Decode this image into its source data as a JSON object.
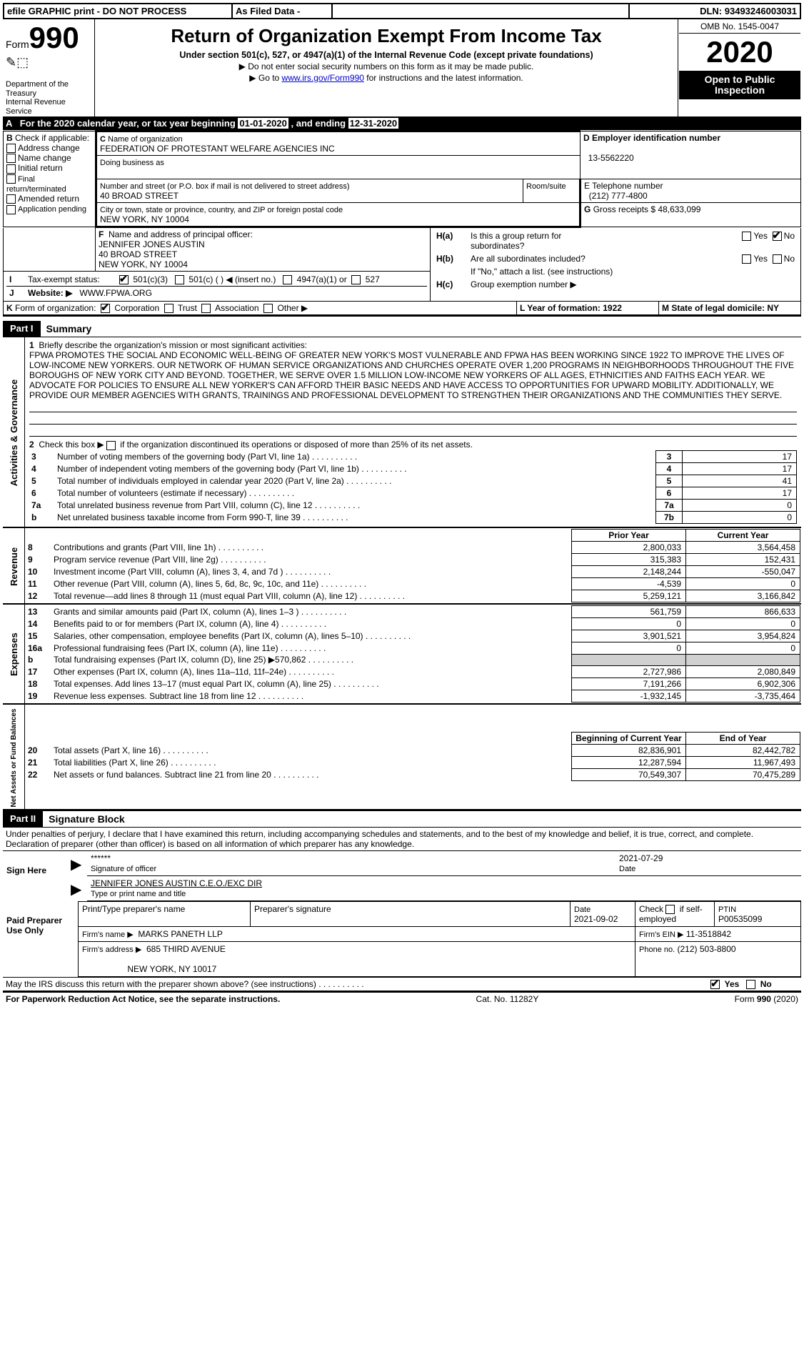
{
  "top": {
    "efile": "efile GRAPHIC print - DO NOT PROCESS",
    "asfiled": "As Filed Data -",
    "dln_label": "DLN:",
    "dln": "93493246003031"
  },
  "header": {
    "form_word": "Form",
    "form_num": "990",
    "dept1": "Department of the Treasury",
    "dept2": "Internal Revenue Service",
    "title": "Return of Organization Exempt From Income Tax",
    "sub": "Under section 501(c), 527, or 4947(a)(1) of the Internal Revenue Code (except private foundations)",
    "arrow1": "▶ Do not enter social security numbers on this form as it may be made public.",
    "arrow2_pre": "▶ Go to ",
    "arrow2_link": "www.irs.gov/Form990",
    "arrow2_post": " for instructions and the latest information.",
    "omb": "OMB No. 1545-0047",
    "year": "2020",
    "open1": "Open to Public",
    "open2": "Inspection"
  },
  "rowA": {
    "label": "A",
    "text_pre": "For the 2020 calendar year, or tax year beginning ",
    "begin": "01-01-2020",
    "mid": "   , and ending ",
    "end": "12-31-2020"
  },
  "B": {
    "label": "B",
    "check": "Check if applicable:",
    "items": [
      "Address change",
      "Name change",
      "Initial return",
      "Final return/terminated",
      "Amended return",
      "Application pending"
    ]
  },
  "C": {
    "label": "C",
    "name_lbl": "Name of organization",
    "name": "FEDERATION OF PROTESTANT WELFARE AGENCIES INC",
    "dba_lbl": "Doing business as",
    "street_lbl": "Number and street (or P.O. box if mail is not delivered to street address)",
    "room_lbl": "Room/suite",
    "street": "40 BROAD STREET",
    "city_lbl": "City or town, state or province, country, and ZIP or foreign postal code",
    "city": "NEW YORK, NY  10004"
  },
  "D": {
    "label": "D Employer identification number",
    "val": "13-5562220"
  },
  "E": {
    "label": "E Telephone number",
    "val": "(212) 777-4800"
  },
  "G": {
    "label": "G",
    "text": "Gross receipts $",
    "val": "48,633,099"
  },
  "F": {
    "label": "F",
    "text": "Name and address of principal officer:",
    "line1": "JENNIFER JONES AUSTIN",
    "line2": "40 BROAD STREET",
    "line3": "NEW YORK, NY  10004"
  },
  "H": {
    "a_lbl": "H(a)",
    "a_text": "Is this a group return for",
    "a_text2": "subordinates?",
    "b_lbl": "H(b)",
    "b_text": "Are all subordinates included?",
    "b_note": "If \"No,\" attach a list. (see instructions)",
    "c_lbl": "H(c)",
    "c_text": "Group exemption number ▶",
    "yes": "Yes",
    "no": "No"
  },
  "I": {
    "label": "I",
    "text": "Tax-exempt status:",
    "o1": "501(c)(3)",
    "o2": "501(c) (   ) ◀ (insert no.)",
    "o3": "4947(a)(1) or",
    "o4": "527"
  },
  "J": {
    "label": "J",
    "text": "Website: ▶",
    "val": "WWW.FPWA.ORG"
  },
  "K": {
    "label": "K",
    "text": "Form of organization:",
    "o1": "Corporation",
    "o2": "Trust",
    "o3": "Association",
    "o4": "Other ▶"
  },
  "L": {
    "text": "L Year of formation: 1922"
  },
  "M": {
    "text": "M State of legal domicile: NY"
  },
  "part1": {
    "label": "Part I",
    "title": "Summary"
  },
  "mission": {
    "num": "1",
    "lead": "Briefly describe the organization's mission or most significant activities:",
    "text": "FPWA PROMOTES THE SOCIAL AND ECONOMIC WELL-BEING OF GREATER NEW YORK'S MOST VULNERABLE AND FPWA HAS BEEN WORKING SINCE 1922 TO IMPROVE THE LIVES OF LOW-INCOME NEW YORKERS. OUR NETWORK OF HUMAN SERVICE ORGANIZATIONS AND CHURCHES OPERATE OVER 1,200 PROGRAMS IN NEIGHBORHOODS THROUGHOUT THE FIVE BOROUGHS OF NEW YORK CITY AND BEYOND. TOGETHER, WE SERVE OVER 1.5 MILLION LOW-INCOME NEW YORKERS OF ALL AGES, ETHNICITIES AND FAITHS EACH YEAR. WE ADVOCATE FOR POLICIES TO ENSURE ALL NEW YORKER'S CAN AFFORD THEIR BASIC NEEDS AND HAVE ACCESS TO OPPORTUNITIES FOR UPWARD MOBILITY. ADDITIONALLY, WE PROVIDE OUR MEMBER AGENCIES WITH GRANTS, TRAININGS AND PROFESSIONAL DEVELOPMENT TO STRENGTHEN THEIR ORGANIZATIONS AND THE COMMUNITIES THEY SERVE."
  },
  "line2": {
    "num": "2",
    "text": "Check this box ▶ ",
    "post": " if the organization discontinued its operations or disposed of more than 25% of its net assets."
  },
  "gov_lines": [
    {
      "n": "3",
      "t": "Number of voting members of the governing body (Part VI, line 1a)",
      "box": "3",
      "v": "17"
    },
    {
      "n": "4",
      "t": "Number of independent voting members of the governing body (Part VI, line 1b)",
      "box": "4",
      "v": "17"
    },
    {
      "n": "5",
      "t": "Total number of individuals employed in calendar year 2020 (Part V, line 2a)",
      "box": "5",
      "v": "41"
    },
    {
      "n": "6",
      "t": "Total number of volunteers (estimate if necessary)",
      "box": "6",
      "v": "17"
    },
    {
      "n": "7a",
      "t": "Total unrelated business revenue from Part VIII, column (C), line 12",
      "box": "7a",
      "v": "0"
    },
    {
      "n": "b",
      "t": "Net unrelated business taxable income from Form 990-T, line 39",
      "box": "7b",
      "v": "0"
    }
  ],
  "col_hdrs": {
    "prior": "Prior Year",
    "current": "Current Year"
  },
  "revenue": [
    {
      "n": "8",
      "t": "Contributions and grants (Part VIII, line 1h)",
      "p": "2,800,033",
      "c": "3,564,458"
    },
    {
      "n": "9",
      "t": "Program service revenue (Part VIII, line 2g)",
      "p": "315,383",
      "c": "152,431"
    },
    {
      "n": "10",
      "t": "Investment income (Part VIII, column (A), lines 3, 4, and 7d )",
      "p": "2,148,244",
      "c": "-550,047"
    },
    {
      "n": "11",
      "t": "Other revenue (Part VIII, column (A), lines 5, 6d, 8c, 9c, 10c, and 11e)",
      "p": "-4,539",
      "c": "0"
    },
    {
      "n": "12",
      "t": "Total revenue—add lines 8 through 11 (must equal Part VIII, column (A), line 12)",
      "p": "5,259,121",
      "c": "3,166,842"
    }
  ],
  "expenses": [
    {
      "n": "13",
      "t": "Grants and similar amounts paid (Part IX, column (A), lines 1–3 )",
      "p": "561,759",
      "c": "866,633"
    },
    {
      "n": "14",
      "t": "Benefits paid to or for members (Part IX, column (A), line 4)",
      "p": "0",
      "c": "0"
    },
    {
      "n": "15",
      "t": "Salaries, other compensation, employee benefits (Part IX, column (A), lines 5–10)",
      "p": "3,901,521",
      "c": "3,954,824"
    },
    {
      "n": "16a",
      "t": "Professional fundraising fees (Part IX, column (A), line 11e)",
      "p": "0",
      "c": "0"
    },
    {
      "n": "b",
      "t": "Total fundraising expenses (Part IX, column (D), line 25) ▶570,862",
      "p": "",
      "c": ""
    },
    {
      "n": "17",
      "t": "Other expenses (Part IX, column (A), lines 11a–11d, 11f–24e)",
      "p": "2,727,986",
      "c": "2,080,849"
    },
    {
      "n": "18",
      "t": "Total expenses. Add lines 13–17 (must equal Part IX, column (A), line 25)",
      "p": "7,191,266",
      "c": "6,902,306"
    },
    {
      "n": "19",
      "t": "Revenue less expenses. Subtract line 18 from line 12",
      "p": "-1,932,145",
      "c": "-3,735,464"
    }
  ],
  "na_hdrs": {
    "begin": "Beginning of Current Year",
    "end": "End of Year"
  },
  "net_assets": [
    {
      "n": "20",
      "t": "Total assets (Part X, line 16)",
      "p": "82,836,901",
      "c": "82,442,782"
    },
    {
      "n": "21",
      "t": "Total liabilities (Part X, line 26)",
      "p": "12,287,594",
      "c": "11,967,493"
    },
    {
      "n": "22",
      "t": "Net assets or fund balances. Subtract line 21 from line 20",
      "p": "70,549,307",
      "c": "70,475,289"
    }
  ],
  "vert": {
    "gov": "Activities & Governance",
    "rev": "Revenue",
    "exp": "Expenses",
    "na": "Net Assets or Fund Balances"
  },
  "part2": {
    "label": "Part II",
    "title": "Signature Block"
  },
  "perjury": "Under penalties of perjury, I declare that I have examined this return, including accompanying schedules and statements, and to the best of my knowledge and belief, it is true, correct, and complete. Declaration of preparer (other than officer) is based on all information of which preparer has any knowledge.",
  "sign": {
    "here": "Sign Here",
    "stars": "******",
    "sig_of_officer": "Signature of officer",
    "date_lbl": "Date",
    "date": "2021-07-29",
    "name": "JENNIFER JONES AUSTIN  C.E.O./EXC DIR",
    "type_lbl": "Type or print name and title"
  },
  "paid": {
    "side": "Paid Preparer Use Only",
    "h1": "Print/Type preparer's name",
    "h2": "Preparer's signature",
    "h3": "Date",
    "date": "2021-09-02",
    "check_lbl": "Check",
    "check_post": "if self-employed",
    "ptin_lbl": "PTIN",
    "ptin": "P00535099",
    "firm_name_lbl": "Firm's name    ▶",
    "firm_name": "MARKS PANETH LLP",
    "firm_ein_lbl": "Firm's EIN ▶",
    "firm_ein": "11-3518842",
    "firm_addr_lbl": "Firm's address ▶",
    "firm_addr1": "685 THIRD AVENUE",
    "firm_addr2": "NEW YORK, NY  10017",
    "phone_lbl": "Phone no.",
    "phone": "(212) 503-8800"
  },
  "discuss": {
    "text": "May the IRS discuss this return with the preparer shown above? (see instructions)",
    "yes": "Yes",
    "no": "No"
  },
  "footer": {
    "left": "For Paperwork Reduction Act Notice, see the separate instructions.",
    "mid": "Cat. No. 11282Y",
    "right_pre": "Form ",
    "right_b": "990",
    "right_post": " (2020)"
  }
}
